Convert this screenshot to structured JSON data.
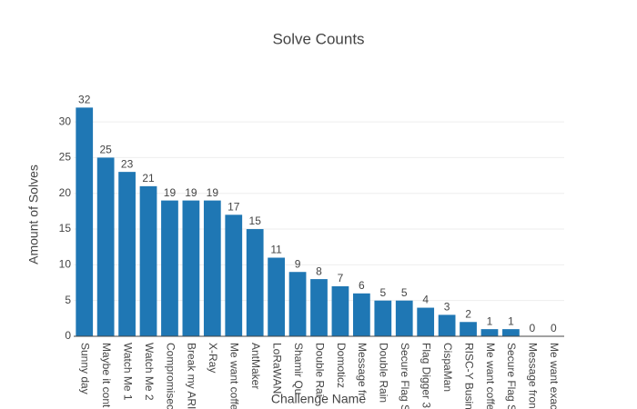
{
  "chart_data": {
    "type": "bar",
    "title": "Solve Counts",
    "x_label": "Challenge Name",
    "y_label": "Amount of Solves",
    "categories": [
      "Sunny day",
      "Maybe it cont",
      "Watch Me 1",
      "Watch Me 2",
      "Compromisec",
      "Break my ARI",
      "X-Ray",
      "Me want coffe",
      "AntMaker",
      "LoRaWAN",
      "Shamir Qu",
      "Double Rai",
      "Domoticz",
      "Message fr",
      "Double Rain",
      "Secure Flag S",
      "Flag Digger 3",
      "CispaMan",
      "RISC-Y Busin",
      "Me want coffe",
      "Secure Flag S",
      "Message fron",
      "Me want exac"
    ],
    "values": [
      32,
      25,
      23,
      21,
      19,
      19,
      19,
      17,
      15,
      11,
      9,
      8,
      7,
      6,
      5,
      5,
      4,
      3,
      2,
      1,
      1,
      0,
      0
    ],
    "color": "#1f77b4",
    "ylim": [
      0,
      33.7
    ],
    "yticks": [
      0,
      5,
      10,
      15,
      20,
      25,
      30
    ],
    "grid": true
  }
}
